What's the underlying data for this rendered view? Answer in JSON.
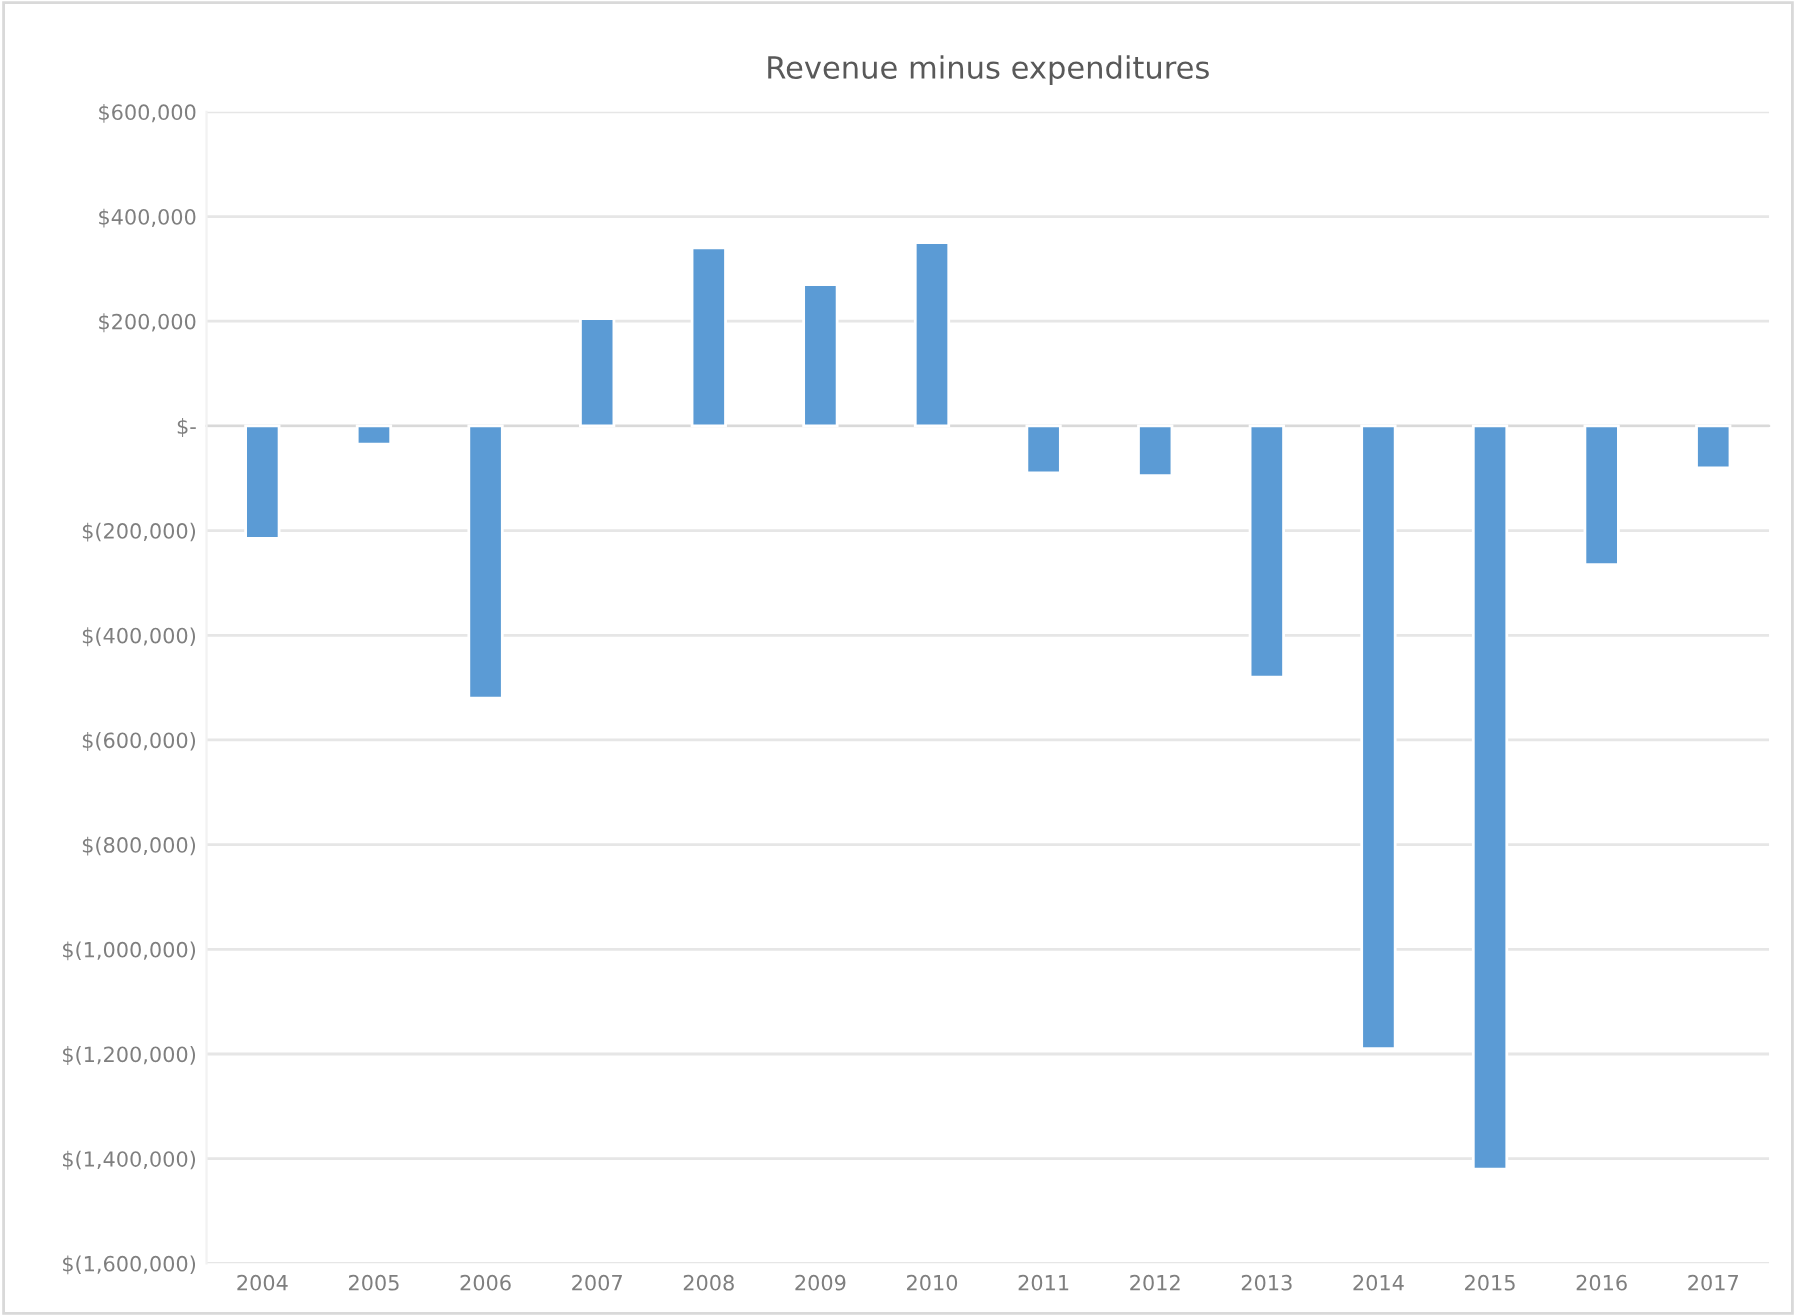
{
  "chart_data": {
    "type": "bar",
    "title": "Revenue minus expenditures",
    "categories": [
      "2004",
      "2005",
      "2006",
      "2007",
      "2008",
      "2009",
      "2010",
      "2011",
      "2012",
      "2013",
      "2014",
      "2015",
      "2016",
      "2017"
    ],
    "series": [
      {
        "color": "#5b9bd5",
        "values": [
          -215000,
          -35000,
          -520000,
          205000,
          340000,
          270000,
          350000,
          -90000,
          -95000,
          -480000,
          -1190000,
          -1420000,
          -265000,
          -80000
        ]
      }
    ],
    "ylim": [
      -1600000,
      600000
    ],
    "yticks": [
      {
        "value": -1600000,
        "label": "$(1,600,000)"
      },
      {
        "value": -1400000,
        "label": "$(1,400,000)"
      },
      {
        "value": -1200000,
        "label": "$(1,200,000)"
      },
      {
        "value": -1000000,
        "label": "$(1,000,000)"
      },
      {
        "value": -800000,
        "label": "$(800,000)"
      },
      {
        "value": -600000,
        "label": "$(600,000)"
      },
      {
        "value": -400000,
        "label": "$(400,000)"
      },
      {
        "value": -200000,
        "label": "$(200,000)"
      },
      {
        "value": 0,
        "label": "$-"
      },
      {
        "value": 200000,
        "label": "$200,000"
      },
      {
        "value": 400000,
        "label": "$400,000"
      },
      {
        "value": 600000,
        "label": "$600,000"
      }
    ],
    "grid": "y"
  }
}
